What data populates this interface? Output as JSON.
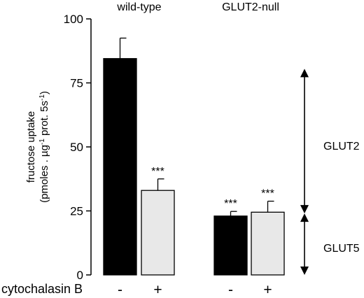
{
  "chart_data": {
    "type": "bar",
    "ylabel_line1": "fructose uptake",
    "ylabel_line2": "(pmoles . µg",
    "ylabel_sup1": "-1",
    "ylabel_line2b": " prot. 5s",
    "ylabel_sup2": "-1",
    "ylabel_line2c": ")",
    "yticks": [
      0,
      25,
      50,
      75,
      100
    ],
    "ylim": [
      0,
      100
    ],
    "groups": [
      "wild-type",
      "GLUT2-null"
    ],
    "condition_label": "cytochalasin B",
    "bars": [
      {
        "group": 0,
        "sign": "-",
        "value": 84.5,
        "error": 8,
        "fill": "#000000",
        "sig": ""
      },
      {
        "group": 0,
        "sign": "+",
        "value": 33,
        "error": 4.5,
        "fill": "#e8e8e8",
        "sig": "***"
      },
      {
        "group": 1,
        "sign": "-",
        "value": 23,
        "error": 1.8,
        "fill": "#000000",
        "sig": "***"
      },
      {
        "group": 1,
        "sign": "+",
        "value": 24.5,
        "error": 4.3,
        "fill": "#e8e8e8",
        "sig": "***"
      }
    ],
    "annotations": [
      {
        "label": "GLUT2",
        "from": 24,
        "to": 80.5
      },
      {
        "label": "GLUT5",
        "from": 0,
        "to": 24
      }
    ]
  }
}
